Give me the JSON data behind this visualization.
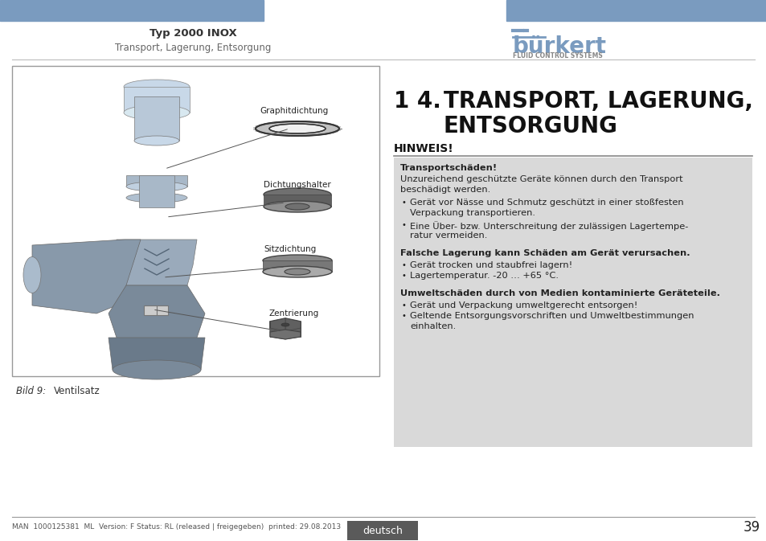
{
  "page_bg": "#ffffff",
  "header_bar_color": "#7a9bbf",
  "header_title": "Typ 2000 INOX",
  "header_subtitle": "Transport, Lagerung, Entsorgung",
  "burkert_text": "bürkert",
  "burkert_subtext": "FLUID CONTROL SYSTEMS",
  "burkert_color": "#7a9bbf",
  "section_number": "1 4.",
  "section_title_line1": "TRANSPORT, LAGERUNG,",
  "section_title_line2": "ENTSORGUNG",
  "hinweis_label": "HINWEIS!",
  "gray_box_color": "#d9d9d9",
  "box_title1": "Transportschäden!",
  "box_body1_line1": "Unzureichend geschützte Geräte können durch den Transport",
  "box_body1_line2": "beschädigt werden.",
  "box_bullet1a_line1": "Gerät vor Nässe und Schmutz geschützt in einer stoßfesten",
  "box_bullet1a_line2": "Verpackung transportieren.",
  "box_bullet1b_line1": "Eine Über- bzw. Unterschreitung der zulässigen Lagertempe-",
  "box_bullet1b_line2": "ratur vermeiden.",
  "box_title2": "Falsche Lagerung kann Schäden am Gerät verursachen.",
  "box_bullet2a": "Gerät trocken und staubfrei lagern!",
  "box_bullet2b": "Lagertemperatur. -20 … +65 °C.",
  "box_title3": "Umweltschäden durch von Medien kontaminierte Geräteteile.",
  "box_bullet3a": "Gerät und Verpackung umweltgerecht entsorgen!",
  "box_bullet3b_line1": "Geltende Entsorgungsvorschriften und Umweltbestimmungen",
  "box_bullet3b_line2": "einhalten.",
  "left_labels": [
    "Graphitdichtung",
    "Dichtungshalter",
    "Sitzdichtung",
    "Zentrierung"
  ],
  "left_image_label": "Bild 9:",
  "left_image_caption": "Ventilsatz",
  "footer_text": "MAN  1000125381  ML  Version: F Status: RL (released | freigegeben)  printed: 29.08.2013",
  "footer_lang": "deutsch",
  "footer_page": "39",
  "footer_lang_bg": "#5a5a5a",
  "footer_lang_color": "#ffffff"
}
